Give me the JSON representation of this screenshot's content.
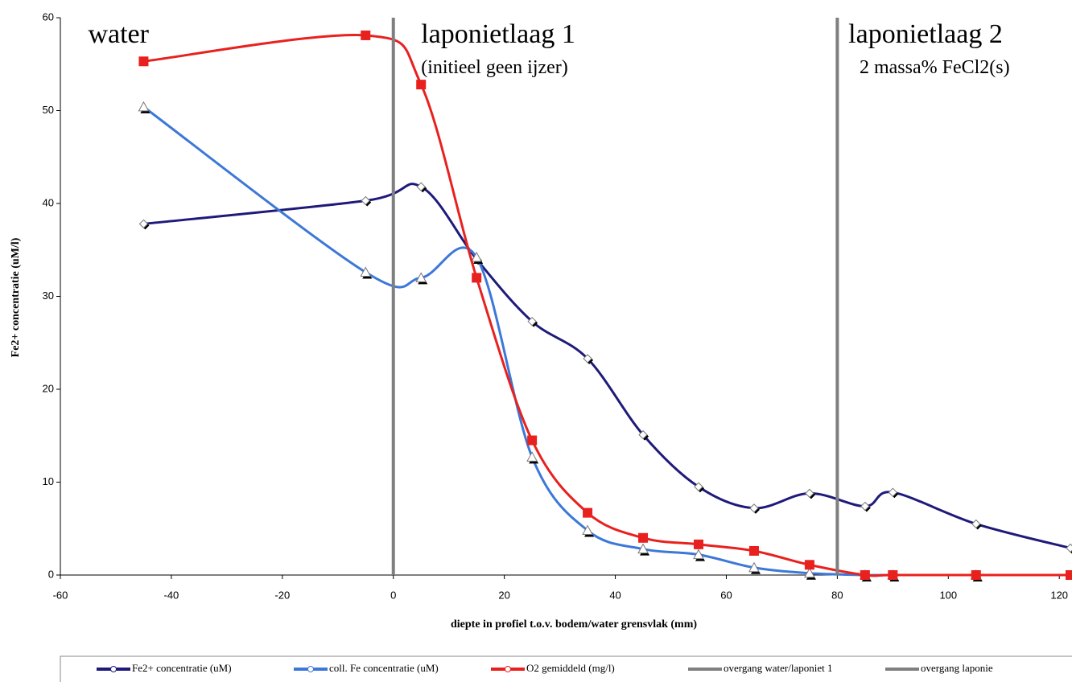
{
  "chart_data": {
    "type": "line",
    "xlabel": "diepte in profiel t.o.v. bodem/water grensvlak (mm)",
    "ylabel": "Fe2+ concentratie (uM/l)",
    "xlim": [
      -60,
      122
    ],
    "xticks": [
      -60,
      -40,
      -20,
      0,
      20,
      40,
      60,
      80,
      100,
      120
    ],
    "ylim": [
      0,
      60
    ],
    "yticks": [
      0,
      10,
      20,
      30,
      40,
      50,
      60
    ],
    "annotations": [
      {
        "text": "water",
        "x": -55,
        "y": 58
      },
      {
        "text": "laponietlaag 1",
        "x": 5,
        "y": 58
      },
      {
        "text": "(initieel geen ijzer)",
        "x": 5,
        "y": 54.5
      },
      {
        "text": "laponietlaag 2",
        "x": 82,
        "y": 58
      },
      {
        "text": "2 massa% FeCl2(s)",
        "x": 84,
        "y": 54.5
      }
    ],
    "series": [
      {
        "name": "Fe2+ concentratie (uM)",
        "color": "#1f1a7a",
        "marker": "diamond",
        "x": [
          -45,
          -5,
          5,
          15,
          25,
          35,
          45,
          55,
          65,
          75,
          85,
          90,
          105,
          122
        ],
        "values": [
          37.8,
          40.3,
          41.8,
          34,
          27.3,
          23.3,
          15.1,
          9.5,
          7.2,
          8.8,
          7.4,
          8.9,
          5.5,
          2.9
        ]
      },
      {
        "name": "coll. Fe concentratie (uM)",
        "color": "#3c78d8",
        "marker": "triangle",
        "x": [
          -45,
          -5,
          5,
          15,
          25,
          35,
          45,
          55,
          65,
          75,
          85,
          90,
          105
        ],
        "values": [
          50.4,
          32.6,
          32,
          34.2,
          12.7,
          4.8,
          2.8,
          2.2,
          0.8,
          0.2,
          0,
          0,
          0
        ]
      },
      {
        "name": "O2 gemiddeld (mg/l)",
        "color": "#e8211e",
        "marker": "square",
        "x": [
          -45,
          -5,
          5,
          15,
          25,
          35,
          45,
          55,
          65,
          75,
          85,
          90,
          105,
          122
        ],
        "values": [
          55.3,
          58.1,
          52.8,
          32,
          14.5,
          6.7,
          4,
          3.3,
          2.6,
          1.1,
          0,
          0,
          0,
          0
        ]
      },
      {
        "name": "overgang  water/laponiet 1",
        "color": "#7f7f7f",
        "marker": "none",
        "x": [
          0,
          0
        ],
        "values": [
          0,
          60
        ]
      },
      {
        "name": "overgang  laponie",
        "color": "#7f7f7f",
        "marker": "none",
        "x": [
          80,
          80
        ],
        "values": [
          0,
          60
        ]
      }
    ]
  }
}
